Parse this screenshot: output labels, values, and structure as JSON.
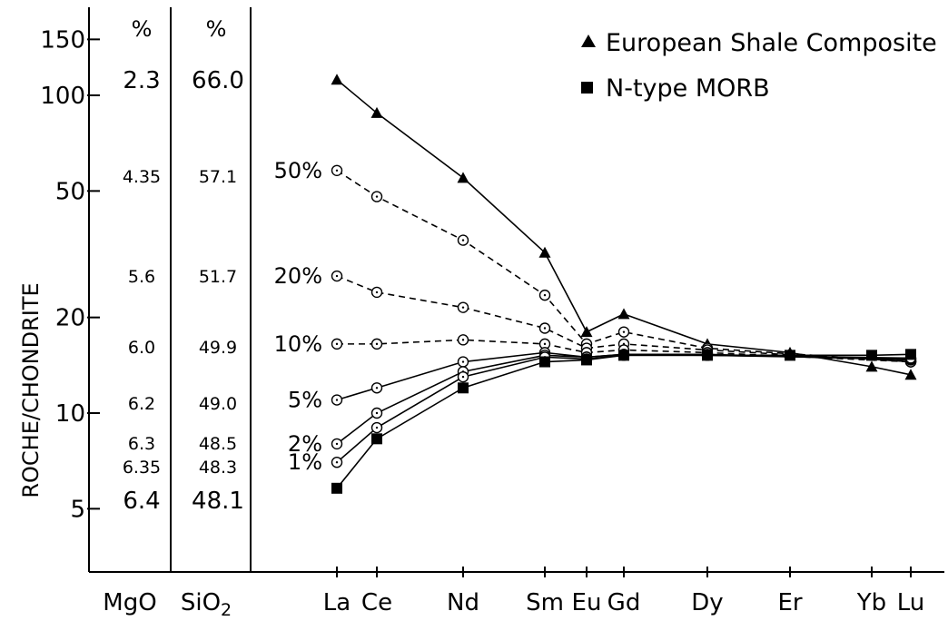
{
  "chart_data": {
    "type": "line",
    "ylabel": "ROCHE/CHONDRITE",
    "yscale": "log",
    "yticks": [
      "5",
      "10",
      "20",
      "50",
      "100",
      "150"
    ],
    "categories": [
      "La",
      "Ce",
      "Nd",
      "Sm",
      "Eu",
      "Gd",
      "Dy",
      "Er",
      "Yb",
      "Lu"
    ],
    "composition_columns": [
      {
        "label": "MgO",
        "unit": "%",
        "values": [
          "2.3",
          "4.35",
          "5.6",
          "6.0",
          "6.2",
          "6.3",
          "6.35",
          "6.4"
        ]
      },
      {
        "label": "SiO",
        "label_sub": "2",
        "unit": "%",
        "values": [
          "66.0",
          "57.1",
          "51.7",
          "49.9",
          "49.0",
          "48.5",
          "48.3",
          "48.1"
        ]
      }
    ],
    "legend": {
      "placement": "top-right",
      "items": [
        "European Shale Composite",
        "N-type MORB"
      ]
    },
    "series": [
      {
        "name": "European Shale Composite",
        "marker": "triangle",
        "style": "solid",
        "values": [
          112,
          88,
          55,
          32,
          18,
          20.5,
          16.5,
          15.5,
          14,
          13.2
        ]
      },
      {
        "label": "50%",
        "marker": "circle",
        "style": "dashed",
        "values": [
          58,
          48,
          35,
          23.5,
          16.5,
          18,
          16,
          null,
          null,
          14.5
        ]
      },
      {
        "label": "20%",
        "marker": "circle",
        "style": "dashed",
        "values": [
          27,
          24,
          21.5,
          18.5,
          16,
          16.5,
          15.8,
          null,
          null,
          14.5
        ]
      },
      {
        "label": "10%",
        "marker": "circle",
        "style": "dashed",
        "values": [
          16.5,
          16.5,
          17,
          16.5,
          15.5,
          15.8,
          15.5,
          null,
          null,
          14.5
        ]
      },
      {
        "label": "5%",
        "marker": "circle",
        "style": "solid",
        "values": [
          11,
          12,
          14.5,
          15.5,
          15,
          15.3,
          15.3,
          null,
          null,
          14.7
        ]
      },
      {
        "label": "2%",
        "marker": "circle",
        "style": "solid",
        "values": [
          8,
          10,
          13.5,
          15.2,
          15,
          15.3,
          15.2,
          null,
          null,
          14.8
        ]
      },
      {
        "label": "1%",
        "marker": "circle",
        "style": "solid",
        "values": [
          7,
          9,
          13,
          15,
          14.8,
          15.2,
          15.2,
          null,
          null,
          14.9
        ]
      },
      {
        "name": "N-type MORB",
        "marker": "square",
        "style": "solid",
        "values": [
          5.8,
          8.3,
          12,
          14.5,
          14.7,
          15.2,
          15.2,
          15.2,
          15.2,
          15.3
        ]
      }
    ]
  }
}
